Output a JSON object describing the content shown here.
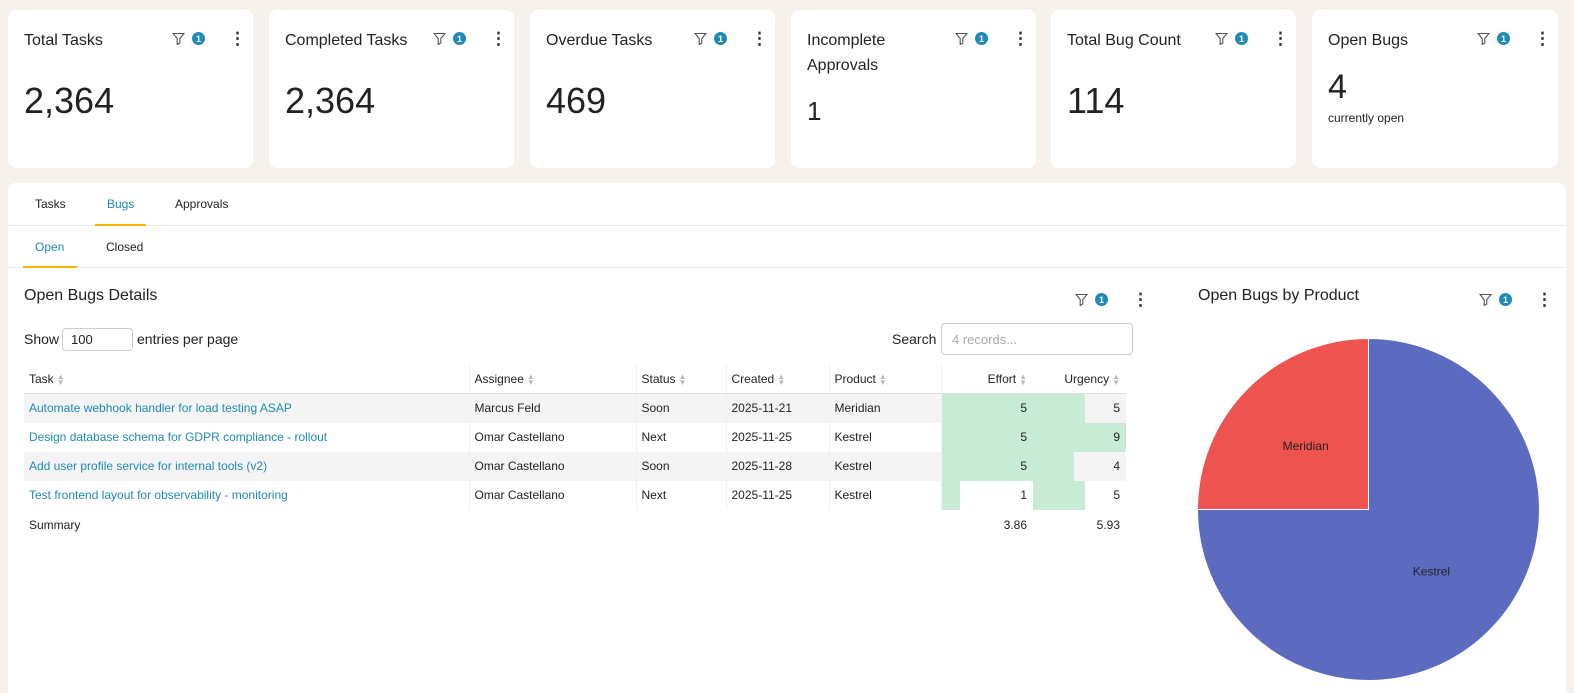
{
  "kpis": [
    {
      "title": "Total Tasks",
      "value": "2,364",
      "filter_count": "1"
    },
    {
      "title": "Completed Tasks",
      "value": "2,364",
      "filter_count": "1"
    },
    {
      "title": "Overdue Tasks",
      "value": "469",
      "filter_count": "1"
    },
    {
      "title": "Incomplete Approvals",
      "value": "1",
      "filter_count": "1"
    },
    {
      "title": "Total Bug Count",
      "value": "114",
      "filter_count": "1"
    },
    {
      "title": "Open Bugs",
      "value": "4",
      "subtitle": "currently open",
      "filter_count": "1"
    }
  ],
  "tabs": [
    "Tasks",
    "Bugs",
    "Approvals"
  ],
  "active_tab": "Bugs",
  "subtabs": [
    "Open",
    "Closed"
  ],
  "active_subtab": "Open",
  "details": {
    "title": "Open Bugs Details",
    "filter_count": "1",
    "show_label": "Show",
    "entries_value": "100",
    "entries_label": "entries per page",
    "search_label": "Search",
    "search_placeholder": "4 records...",
    "columns": [
      "Task",
      "Assignee",
      "Status",
      "Created",
      "Product",
      "Effort",
      "Urgency"
    ],
    "rows": [
      {
        "task": "Automate webhook handler for load testing ASAP",
        "assignee": "Marcus Feld",
        "status": "Soon",
        "created": "2025-11-21",
        "product": "Meridian",
        "effort": 5,
        "urgency": 5
      },
      {
        "task": "Design database schema for GDPR compliance - rollout",
        "assignee": "Omar Castellano",
        "status": "Next",
        "created": "2025-11-25",
        "product": "Kestrel",
        "effort": 5,
        "urgency": 9
      },
      {
        "task": "Add user profile service for internal tools (v2)",
        "assignee": "Omar Castellano",
        "status": "Soon",
        "created": "2025-11-28",
        "product": "Kestrel",
        "effort": 5,
        "urgency": 4
      },
      {
        "task": "Test frontend layout for observability - monitoring",
        "assignee": "Omar Castellano",
        "status": "Next",
        "created": "2025-11-25",
        "product": "Kestrel",
        "effort": 1,
        "urgency": 5
      }
    ],
    "summary_label": "Summary",
    "summary_effort": "3.86",
    "summary_urgency": "5.93",
    "bar_color": "#c8ebd6"
  },
  "pie": {
    "title": "Open Bugs by Product",
    "filter_count": "1"
  },
  "chart_data": {
    "type": "pie",
    "categories": [
      "Meridian",
      "Kestrel"
    ],
    "values": [
      1,
      3
    ],
    "colors": [
      "#ef5350",
      "#5c6bc0"
    ]
  },
  "colors": {
    "accent": "#1f8ab5",
    "tab_underline": "#f5b400",
    "background": "#f6f1ea"
  }
}
